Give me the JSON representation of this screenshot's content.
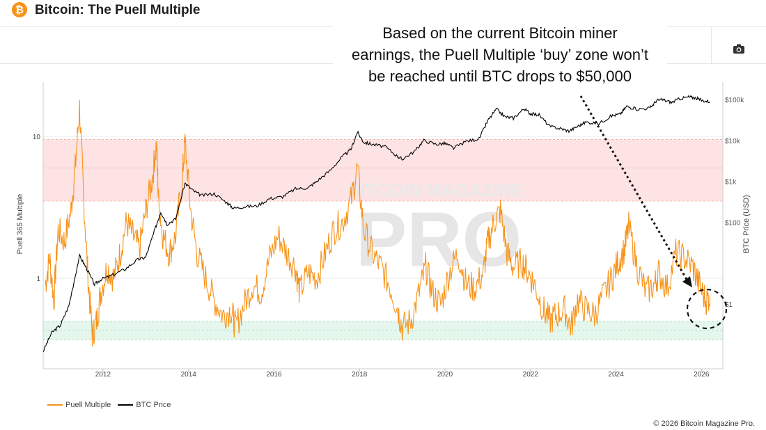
{
  "header": {
    "title": "Bitcoin: The Puell Multiple",
    "logo_glyph": "₿",
    "logo_color": "#f7931a"
  },
  "toolbar": {
    "camera_icon": "camera-icon"
  },
  "annotation": {
    "lines": [
      "Based on the current Bitcoin miner",
      "earnings, the Puell Multiple ‘buy’ zone won’t",
      "be reached until BTC drops to $50,000"
    ]
  },
  "watermark": {
    "line1": "BITCOIN MAGAZINE",
    "line2": "PRO"
  },
  "legend": {
    "items": [
      {
        "label": "Puell Multiple",
        "color": "#f7931a"
      },
      {
        "label": "BTC Price",
        "color": "#000000"
      }
    ]
  },
  "footer": {
    "copyright": "© 2026 Bitcoin Magazine Pro."
  },
  "chart_data": {
    "type": "line",
    "title": "Bitcoin: The Puell Multiple",
    "x_ticks": [
      "2012",
      "2014",
      "2016",
      "2018",
      "2020",
      "2022",
      "2024",
      "2026"
    ],
    "x_range": [
      2010.6,
      2026.5
    ],
    "y_left": {
      "label": "Puell 365 Multiple",
      "scale": "log",
      "ticks": [
        "10",
        "1"
      ],
      "range": [
        0.3,
        15
      ]
    },
    "y_right": {
      "label": "BTC Price (USD)",
      "scale": "log",
      "ticks": [
        "$100k",
        "$10k",
        "$1k",
        "$100",
        "$1"
      ],
      "range": [
        0.05,
        300000
      ]
    },
    "zones": [
      {
        "name": "sell",
        "from": 3.5,
        "to": 9.5,
        "color": "#fde3e3",
        "axis": "left"
      },
      {
        "name": "buy",
        "from": 0.37,
        "to": 0.5,
        "color": "#e5f7ec",
        "axis": "left"
      }
    ],
    "series": [
      {
        "name": "Puell Multiple",
        "color": "#f7931a",
        "axis": "left",
        "x": [
          2010.65,
          2010.75,
          2010.85,
          2010.95,
          2011.1,
          2011.25,
          2011.35,
          2011.45,
          2011.55,
          2011.65,
          2011.75,
          2011.85,
          2011.95,
          2012.1,
          2012.25,
          2012.4,
          2012.55,
          2012.7,
          2012.85,
          2013.0,
          2013.15,
          2013.25,
          2013.3,
          2013.4,
          2013.55,
          2013.7,
          2013.85,
          2013.92,
          2014.05,
          2014.2,
          2014.4,
          2014.6,
          2014.8,
          2015.0,
          2015.1,
          2015.3,
          2015.5,
          2015.7,
          2015.9,
          2016.1,
          2016.3,
          2016.5,
          2016.6,
          2016.8,
          2017.0,
          2017.2,
          2017.4,
          2017.6,
          2017.8,
          2017.95,
          2018.1,
          2018.3,
          2018.5,
          2018.7,
          2018.9,
          2019.0,
          2019.2,
          2019.4,
          2019.55,
          2019.7,
          2019.9,
          2020.1,
          2020.3,
          2020.5,
          2020.7,
          2020.9,
          2021.0,
          2021.15,
          2021.3,
          2021.45,
          2021.6,
          2021.8,
          2021.95,
          2022.1,
          2022.3,
          2022.45,
          2022.6,
          2022.8,
          2022.95,
          2023.1,
          2023.3,
          2023.5,
          2023.7,
          2023.9,
          2024.05,
          2024.2,
          2024.3,
          2024.5,
          2024.7,
          2024.9,
          2025.0,
          2025.2,
          2025.4,
          2025.6,
          2025.8,
          2025.95,
          2026.1,
          2026.2
        ],
        "y": [
          0.9,
          1.4,
          0.7,
          2.2,
          1.8,
          3.0,
          6.0,
          16.0,
          3.5,
          1.0,
          0.4,
          0.5,
          0.8,
          1.2,
          1.0,
          1.5,
          2.5,
          2.0,
          1.6,
          3.0,
          5.0,
          9.0,
          3.5,
          2.0,
          1.5,
          2.0,
          5.0,
          9.0,
          3.0,
          1.5,
          1.0,
          0.7,
          0.55,
          0.6,
          0.45,
          0.65,
          0.9,
          0.8,
          1.4,
          2.0,
          1.5,
          1.2,
          0.8,
          1.1,
          1.0,
          1.5,
          2.2,
          2.5,
          3.5,
          6.0,
          2.2,
          1.5,
          1.2,
          0.9,
          0.6,
          0.45,
          0.5,
          0.8,
          1.2,
          0.8,
          0.65,
          1.1,
          1.5,
          0.9,
          0.85,
          1.1,
          1.8,
          2.5,
          3.0,
          1.5,
          1.2,
          1.3,
          1.1,
          0.9,
          0.6,
          0.5,
          0.55,
          0.6,
          0.45,
          0.7,
          0.6,
          0.55,
          0.75,
          1.0,
          1.3,
          1.6,
          2.3,
          1.2,
          0.8,
          0.9,
          1.1,
          0.85,
          1.5,
          1.4,
          1.2,
          0.9,
          0.7,
          0.75
        ]
      },
      {
        "name": "BTC Price",
        "color": "#000000",
        "axis": "right",
        "x": [
          2010.6,
          2010.8,
          2011.0,
          2011.2,
          2011.45,
          2011.6,
          2011.8,
          2011.95,
          2012.2,
          2012.5,
          2012.8,
          2013.0,
          2013.2,
          2013.35,
          2013.5,
          2013.7,
          2013.92,
          2014.1,
          2014.3,
          2014.6,
          2014.9,
          2015.05,
          2015.3,
          2015.6,
          2015.9,
          2016.2,
          2016.5,
          2016.8,
          2017.0,
          2017.3,
          2017.6,
          2017.8,
          2017.95,
          2018.1,
          2018.3,
          2018.6,
          2018.9,
          2019.0,
          2019.3,
          2019.5,
          2019.8,
          2020.0,
          2020.2,
          2020.5,
          2020.8,
          2021.0,
          2021.2,
          2021.4,
          2021.6,
          2021.85,
          2022.0,
          2022.2,
          2022.45,
          2022.7,
          2022.9,
          2023.1,
          2023.3,
          2023.6,
          2023.9,
          2024.1,
          2024.25,
          2024.5,
          2024.8,
          2024.95,
          2025.1,
          2025.3,
          2025.5,
          2025.7,
          2025.85,
          2026.0,
          2026.2
        ],
        "y": [
          0.07,
          0.2,
          0.3,
          0.9,
          15,
          8,
          3,
          4,
          5,
          7,
          12,
          14,
          60,
          180,
          90,
          120,
          900,
          600,
          450,
          500,
          300,
          220,
          240,
          250,
          380,
          420,
          650,
          700,
          1000,
          1800,
          4000,
          6000,
          16000,
          9000,
          8000,
          7000,
          4000,
          3500,
          5500,
          10000,
          8000,
          8500,
          6500,
          9500,
          11000,
          30000,
          58000,
          38000,
          35000,
          60000,
          45000,
          42000,
          22000,
          19500,
          17000,
          22000,
          28000,
          26000,
          40000,
          44000,
          68000,
          58000,
          62000,
          95000,
          98000,
          85000,
          105000,
          115000,
          110000,
          95000,
          88000
        ]
      }
    ]
  }
}
